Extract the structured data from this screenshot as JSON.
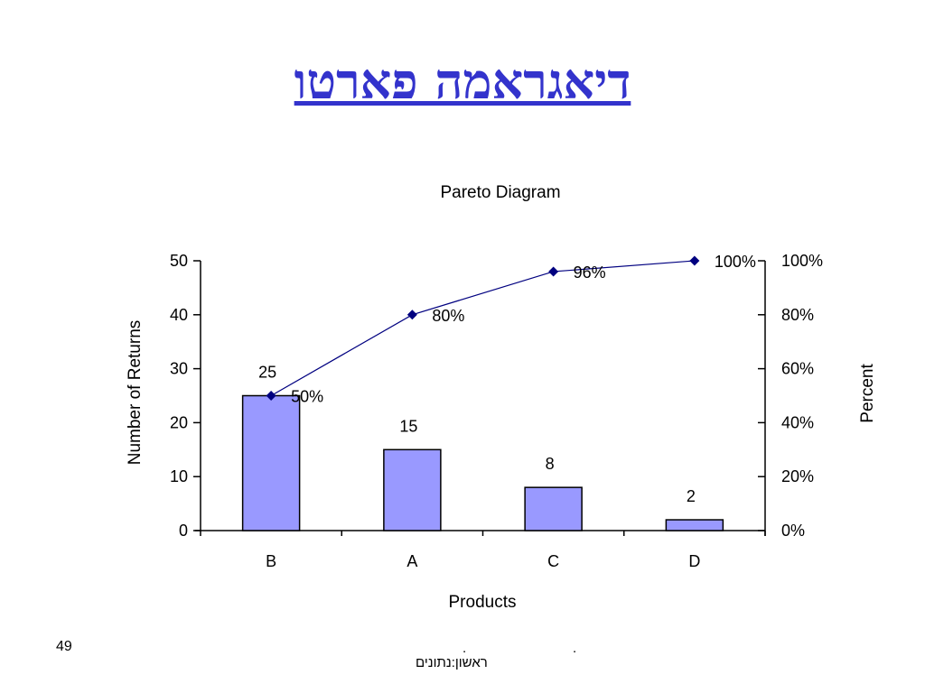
{
  "slide": {
    "title": "דיאגראמה פארטו",
    "page_number": "49",
    "footer_dots": [
      ".",
      "."
    ],
    "footer_text": "ראשון:נתונים"
  },
  "colors": {
    "title": "#3333cc",
    "bar_fill": "#9999ff",
    "bar_stroke": "#000000",
    "line": "#000080"
  },
  "chart_data": {
    "type": "bar",
    "title": "Pareto Diagram",
    "xlabel": "Products",
    "ylabel": "Number of Returns",
    "y2label": "Percent",
    "categories": [
      "B",
      "A",
      "C",
      "D"
    ],
    "series": [
      {
        "type": "bar",
        "values": [
          25,
          15,
          8,
          2
        ],
        "data_labels": [
          "25",
          "15",
          "8",
          "2"
        ]
      },
      {
        "type": "line",
        "axis": "secondary",
        "values": [
          50,
          80,
          96,
          100
        ],
        "data_labels": [
          "50%",
          "80%",
          "96%",
          "100%"
        ]
      }
    ],
    "ylim": [
      0,
      50
    ],
    "yticks": [
      0,
      10,
      20,
      30,
      40,
      50
    ],
    "y2lim": [
      0,
      100
    ],
    "y2ticks": [
      "0%",
      "20%",
      "40%",
      "60%",
      "80%",
      "100%"
    ],
    "grid": false,
    "legend": "none"
  }
}
